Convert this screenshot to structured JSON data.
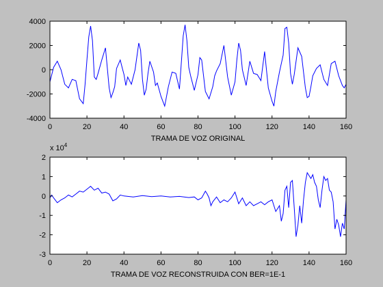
{
  "figure": {
    "background": "#c0c0c0",
    "axes_background": "#ffffff",
    "line_color": "#0000ff"
  },
  "chart_data": [
    {
      "type": "line",
      "xlabel": "TRAMA DE VOZ ORIGINAL",
      "ylabel": "",
      "xlim": [
        0,
        160
      ],
      "ylim": [
        -4000,
        4000
      ],
      "xticks": [
        0,
        20,
        40,
        60,
        80,
        100,
        120,
        140,
        160
      ],
      "yticks": [
        -4000,
        -2000,
        0,
        2000,
        4000
      ],
      "xtick_labels": [
        "0",
        "20",
        "40",
        "60",
        "80",
        "100",
        "120",
        "140",
        "160"
      ],
      "ytick_labels": [
        "-4000",
        "-2000",
        "0",
        "2000",
        "4000"
      ],
      "exponent_label": "",
      "grid": false,
      "series": [
        {
          "color": "#0000ff",
          "x": [
            0,
            2,
            4,
            6,
            8,
            10,
            12,
            14,
            16,
            18,
            19,
            20,
            21,
            22,
            23,
            24,
            25,
            26,
            28,
            30,
            32,
            33,
            34,
            35,
            36,
            38,
            39,
            40,
            41,
            42,
            44,
            46,
            48,
            49,
            50,
            51,
            52,
            53,
            54,
            56,
            57,
            58,
            60,
            61,
            62,
            64,
            66,
            68,
            70,
            72,
            73,
            74,
            75,
            76,
            77,
            78,
            80,
            81,
            82,
            84,
            86,
            88,
            89,
            90,
            92,
            94,
            96,
            98,
            100,
            101,
            102,
            103,
            104,
            106,
            108,
            110,
            112,
            114,
            116,
            118,
            120,
            121,
            122,
            124,
            126,
            127,
            128,
            129,
            130,
            131,
            132,
            134,
            136,
            138,
            139,
            140,
            141,
            142,
            144,
            146,
            148,
            150,
            152,
            154,
            156,
            158,
            159,
            160
          ],
          "y": [
            -1000,
            200,
            700,
            0,
            -1200,
            -1500,
            -800,
            -900,
            -2400,
            -2800,
            -1200,
            800,
            2700,
            3600,
            2400,
            -600,
            -800,
            -300,
            800,
            1800,
            -1500,
            -2300,
            -1900,
            -1400,
            100,
            800,
            200,
            -400,
            -1300,
            -600,
            -1200,
            0,
            2200,
            1600,
            -800,
            -2100,
            -1600,
            -300,
            700,
            -200,
            -1300,
            -1100,
            -2200,
            -2600,
            -3000,
            -1400,
            -200,
            -300,
            -1600,
            2800,
            3700,
            2400,
            200,
            -500,
            -1100,
            -1700,
            -400,
            1000,
            800,
            -1800,
            -2400,
            -1400,
            -500,
            -100,
            500,
            2000,
            -600,
            -2100,
            -1000,
            800,
            2200,
            1600,
            0,
            -1300,
            700,
            -300,
            -400,
            -900,
            1500,
            -1500,
            -2600,
            -3000,
            -1800,
            -200,
            1200,
            3400,
            3500,
            2200,
            -300,
            -1200,
            -400,
            1800,
            1100,
            -1500,
            -2300,
            -2200,
            -1400,
            -500,
            100,
            400,
            -800,
            -1300,
            500,
            700,
            -500,
            -1300,
            -1500,
            -1200
          ]
        }
      ]
    },
    {
      "type": "line",
      "xlabel": "TRAMA DE VOZ RECONSTRUIDA CON BER=1E-1",
      "ylabel": "",
      "xlim": [
        0,
        160
      ],
      "ylim": [
        -3,
        2
      ],
      "xticks": [
        0,
        20,
        40,
        60,
        80,
        100,
        120,
        140,
        160
      ],
      "yticks": [
        -3,
        -2,
        -1,
        0,
        1,
        2
      ],
      "xtick_labels": [
        "0",
        "20",
        "40",
        "60",
        "80",
        "100",
        "120",
        "140",
        "160"
      ],
      "ytick_labels": [
        "-3",
        "-2",
        "-1",
        "0",
        "1",
        "2"
      ],
      "exponent_label": "x 10",
      "exponent_power": "4",
      "grid": false,
      "series": [
        {
          "color": "#0000ff",
          "x": [
            0,
            1,
            2,
            4,
            6,
            8,
            10,
            12,
            14,
            16,
            18,
            20,
            22,
            24,
            26,
            28,
            30,
            32,
            34,
            36,
            38,
            40,
            45,
            50,
            55,
            60,
            65,
            70,
            75,
            78,
            80,
            82,
            84,
            85,
            86,
            87,
            88,
            90,
            92,
            94,
            96,
            98,
            100,
            102,
            104,
            106,
            108,
            110,
            112,
            114,
            116,
            118,
            120,
            122,
            124,
            125,
            126,
            127,
            128,
            129,
            130,
            131,
            132,
            133,
            134,
            135,
            136,
            137,
            138,
            139,
            140,
            141,
            142,
            143,
            144,
            145,
            146,
            147,
            148,
            149,
            150,
            151,
            152,
            153,
            154,
            155,
            156,
            157,
            158,
            159,
            160
          ],
          "y": [
            -0.1,
            0.05,
            -0.1,
            -0.35,
            -0.2,
            -0.1,
            0.05,
            -0.05,
            0.1,
            0.25,
            0.2,
            0.35,
            0.5,
            0.3,
            0.4,
            0.15,
            0.2,
            0.1,
            -0.25,
            -0.15,
            0.05,
            0.0,
            -0.05,
            0.02,
            -0.03,
            0.0,
            -0.05,
            -0.02,
            -0.08,
            -0.05,
            -0.2,
            -0.1,
            0.25,
            0.1,
            -0.1,
            -0.5,
            -0.3,
            -0.05,
            -0.35,
            -0.2,
            -0.3,
            -0.1,
            0.2,
            -0.4,
            -0.1,
            -0.5,
            -0.3,
            -0.5,
            -0.4,
            -0.3,
            -0.45,
            -0.3,
            -0.2,
            -0.8,
            -0.5,
            -1.3,
            -0.9,
            0.3,
            0.5,
            -0.6,
            0.7,
            0.8,
            -0.6,
            -2.1,
            -1.5,
            -0.5,
            -1.4,
            -0.2,
            0.7,
            1.2,
            1.05,
            0.9,
            1.1,
            0.7,
            0.5,
            -0.2,
            -0.6,
            0.3,
            1.0,
            0.8,
            0.9,
            0.3,
            0.2,
            -0.3,
            -1.7,
            -1.2,
            -1.5,
            -2.1,
            -1.4,
            -1.7,
            -0.2
          ]
        }
      ]
    }
  ]
}
